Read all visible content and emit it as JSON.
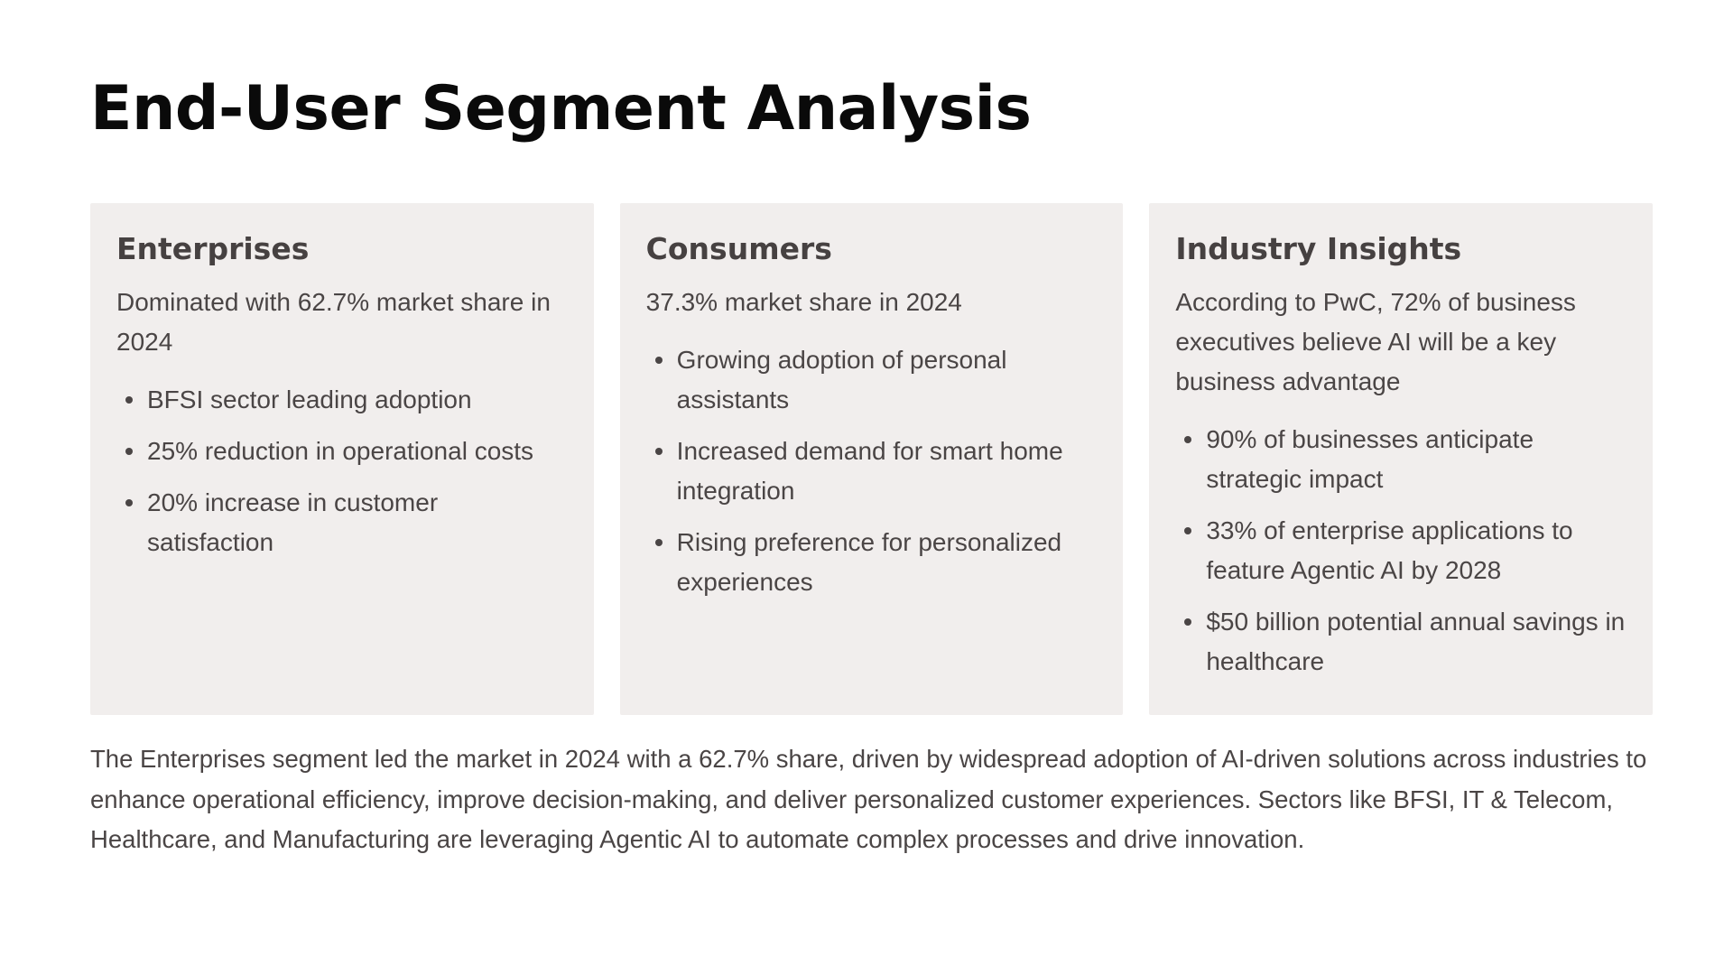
{
  "title": "End-User Segment Analysis",
  "cards": [
    {
      "heading": "Enterprises",
      "lead": "Dominated with 62.7% market share in 2024",
      "bullets": [
        "BFSI sector leading adoption",
        "25% reduction in operational costs",
        "20% increase in customer satisfaction"
      ]
    },
    {
      "heading": "Consumers",
      "lead": "37.3% market share in 2024",
      "bullets": [
        "Growing adoption of personal assistants",
        "Increased demand for smart home integration",
        "Rising preference for personalized experiences"
      ]
    },
    {
      "heading": "Industry Insights",
      "lead": "According to PwC, 72% of business executives believe AI will be a key business advantage",
      "bullets": [
        "90% of businesses anticipate strategic impact",
        "33% of enterprise applications to feature Agentic AI by 2028",
        "$50 billion potential annual savings in healthcare"
      ]
    }
  ],
  "summary": "The Enterprises segment led the market in 2024 with a 62.7% share, driven by widespread adoption of AI-driven solutions across industries to enhance operational efficiency, improve decision-making, and deliver personalized customer experiences. Sectors like BFSI, IT & Telecom, Healthcare, and Manufacturing are leveraging Agentic AI to automate complex processes and drive innovation.",
  "colors": {
    "background": "#ffffff",
    "card_background": "#f1eeed",
    "title_text": "#0a0a0a",
    "body_text": "#4a4545"
  }
}
